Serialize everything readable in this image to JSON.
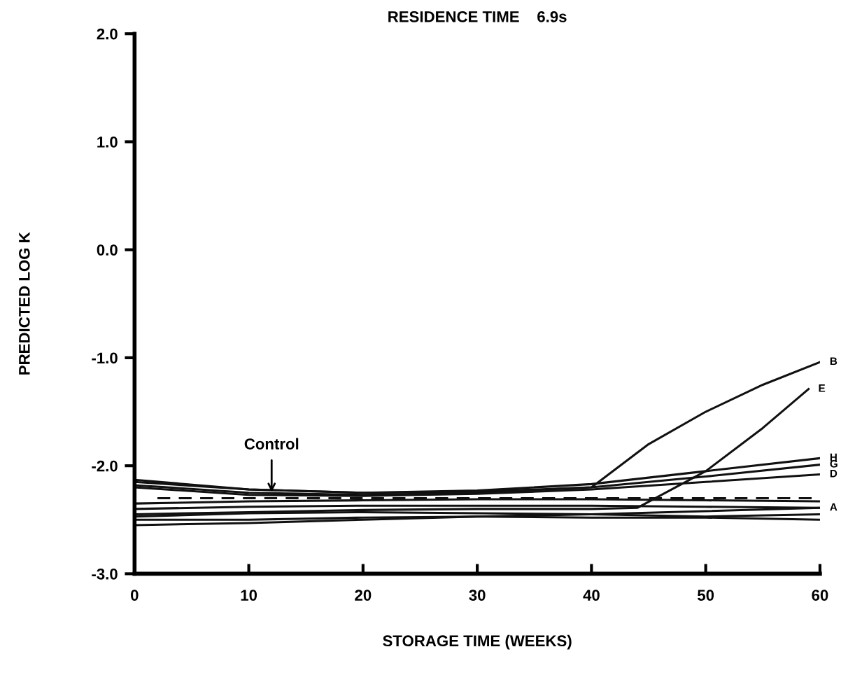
{
  "chart_data": {
    "type": "line",
    "title": "RESIDENCE TIME    6.9s",
    "xlabel": "STORAGE TIME (WEEKS)",
    "ylabel": "PREDICTED LOG K",
    "xlim": [
      0,
      60
    ],
    "xticks": [
      0,
      10,
      20,
      30,
      40,
      50,
      60
    ],
    "ylim": [
      -3.0,
      2.0
    ],
    "yticks": [
      {
        "value": -3.0,
        "label": "-3.0"
      },
      {
        "value": -2.0,
        "label": "-2.0"
      },
      {
        "value": -1.0,
        "label": "-1.0"
      },
      {
        "value": 0.0,
        "label": "0.0"
      },
      {
        "value": 1.0,
        "label": "1.0"
      },
      {
        "value": 2.0,
        "label": "2.0"
      }
    ],
    "grid": false,
    "legend": false,
    "marker": "none",
    "annotations": [
      {
        "text": "Control",
        "x": 12,
        "y": -2.28
      }
    ],
    "series": [
      {
        "name": "B",
        "color": "#111111",
        "x": [
          0,
          10,
          20,
          30,
          40,
          45,
          50,
          55,
          60
        ],
        "values": [
          -2.15,
          -2.22,
          -2.25,
          -2.24,
          -2.2,
          -1.8,
          -1.5,
          -1.25,
          -1.04
        ]
      },
      {
        "name": "E",
        "color": "#111111",
        "x": [
          0,
          10,
          20,
          30,
          40,
          44,
          50,
          55,
          59
        ],
        "values": [
          -2.45,
          -2.43,
          -2.41,
          -2.4,
          -2.4,
          -2.39,
          -2.05,
          -1.65,
          -1.29
        ]
      },
      {
        "name": "H",
        "color": "#111111",
        "x": [
          0,
          10,
          20,
          30,
          40,
          50,
          60
        ],
        "values": [
          -2.13,
          -2.22,
          -2.25,
          -2.23,
          -2.17,
          -2.05,
          -1.93
        ]
      },
      {
        "name": "G",
        "color": "#111111",
        "x": [
          0,
          10,
          20,
          30,
          40,
          50,
          60
        ],
        "values": [
          -2.18,
          -2.25,
          -2.27,
          -2.25,
          -2.2,
          -2.1,
          -1.99
        ]
      },
      {
        "name": "D",
        "color": "#111111",
        "x": [
          0,
          10,
          20,
          30,
          40,
          50,
          60
        ],
        "values": [
          -2.2,
          -2.27,
          -2.28,
          -2.26,
          -2.22,
          -2.15,
          -2.08
        ]
      },
      {
        "color": "#111111",
        "line_style": "dashed",
        "x": [
          2,
          60
        ],
        "values": [
          -2.3,
          -2.3
        ]
      },
      {
        "color": "#111111",
        "x": [
          0,
          10,
          20,
          30,
          40,
          50,
          60
        ],
        "values": [
          -2.35,
          -2.33,
          -2.32,
          -2.31,
          -2.31,
          -2.32,
          -2.33
        ]
      },
      {
        "name": "A",
        "color": "#111111",
        "x": [
          0,
          10,
          20,
          30,
          40,
          50,
          60
        ],
        "values": [
          -2.4,
          -2.38,
          -2.37,
          -2.37,
          -2.37,
          -2.38,
          -2.39
        ]
      },
      {
        "color": "#111111",
        "x": [
          0,
          10,
          20,
          30,
          40,
          50,
          60
        ],
        "values": [
          -2.47,
          -2.44,
          -2.43,
          -2.44,
          -2.45,
          -2.47,
          -2.45
        ]
      },
      {
        "color": "#111111",
        "x": [
          0,
          10,
          20,
          30,
          40,
          50,
          60
        ],
        "values": [
          -2.5,
          -2.5,
          -2.48,
          -2.47,
          -2.48,
          -2.48,
          -2.5
        ]
      },
      {
        "color": "#111111",
        "x": [
          0,
          10,
          20,
          30,
          40,
          50,
          60
        ],
        "values": [
          -2.55,
          -2.53,
          -2.5,
          -2.47,
          -2.45,
          -2.42,
          -2.39
        ]
      }
    ]
  }
}
